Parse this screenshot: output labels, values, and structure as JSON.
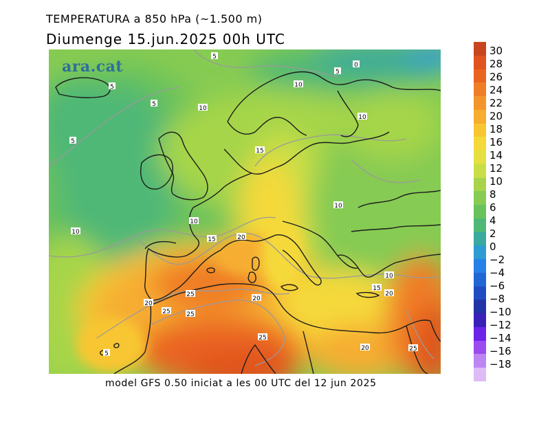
{
  "title": "TEMPERATURA a 850 hPa (~1.500 m)",
  "subtitle": "Diumenge  15.jun.2025 00h UTC",
  "footer": "model GFS 0.50 iniciat a les 00 UTC del 12 jun 2025",
  "logo": "ara.cat",
  "colorbar": {
    "labels": [
      "30",
      "28",
      "26",
      "24",
      "22",
      "20",
      "18",
      "16",
      "14",
      "12",
      "10",
      "8",
      "6",
      "4",
      "2",
      "0",
      "−2",
      "−4",
      "−6",
      "−8",
      "−10",
      "−12",
      "−14",
      "−16",
      "−18"
    ],
    "colors": [
      "#c8451e",
      "#e0521e",
      "#ea6420",
      "#f07d26",
      "#f4952c",
      "#f6ad30",
      "#f8c632",
      "#f5d93a",
      "#e4e042",
      "#c9de46",
      "#a6d54a",
      "#86cb52",
      "#6ac25c",
      "#4fb876",
      "#3aa9a0",
      "#2d9cd2",
      "#2680e8",
      "#2266d4",
      "#1f4cc0",
      "#2233a8",
      "#3a1fb8",
      "#6e24e8",
      "#9a4cf0",
      "#bd85f2",
      "#ddbcf6"
    ]
  },
  "map": {
    "region": "Europe and North Africa",
    "contour_labels": [
      {
        "text": "5"
      },
      {
        "text": "0"
      },
      {
        "text": "5"
      },
      {
        "text": "5"
      },
      {
        "text": "10"
      },
      {
        "text": "5"
      },
      {
        "text": "10"
      },
      {
        "text": "10"
      },
      {
        "text": "5"
      },
      {
        "text": "15"
      },
      {
        "text": "10"
      },
      {
        "text": "10"
      },
      {
        "text": "10"
      },
      {
        "text": "15"
      },
      {
        "text": "20"
      },
      {
        "text": "10"
      },
      {
        "text": "15"
      },
      {
        "text": "20"
      },
      {
        "text": "20"
      },
      {
        "text": "25"
      },
      {
        "text": "20"
      },
      {
        "text": "25"
      },
      {
        "text": "25"
      },
      {
        "text": "25"
      },
      {
        "text": "20"
      },
      {
        "text": "25"
      },
      {
        "text": "5"
      }
    ]
  }
}
